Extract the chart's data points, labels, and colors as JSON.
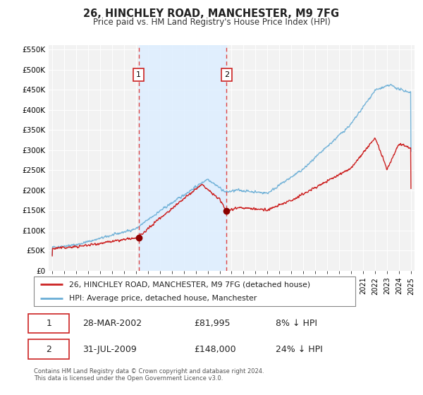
{
  "title": "26, HINCHLEY ROAD, MANCHESTER, M9 7FG",
  "subtitle": "Price paid vs. HM Land Registry's House Price Index (HPI)",
  "ylim": [
    0,
    560000
  ],
  "yticks": [
    0,
    50000,
    100000,
    150000,
    200000,
    250000,
    300000,
    350000,
    400000,
    450000,
    500000,
    550000
  ],
  "ytick_labels": [
    "£0",
    "£50K",
    "£100K",
    "£150K",
    "£200K",
    "£250K",
    "£300K",
    "£350K",
    "£400K",
    "£450K",
    "£500K",
    "£550K"
  ],
  "xlim_start": 1994.7,
  "xlim_end": 2025.3,
  "background_color": "#ffffff",
  "plot_bg_color": "#f2f2f2",
  "grid_color": "#ffffff",
  "sale1_x": 2002.23,
  "sale1_y": 81995,
  "sale1_label": "1",
  "sale1_date": "28-MAR-2002",
  "sale1_price": "£81,995",
  "sale1_hpi": "8% ↓ HPI",
  "sale2_x": 2009.58,
  "sale2_y": 148000,
  "sale2_label": "2",
  "sale2_date": "31-JUL-2009",
  "sale2_price": "£148,000",
  "sale2_hpi": "24% ↓ HPI",
  "vline_color": "#d44",
  "dot_color": "#8b0000",
  "red_line_color": "#cc2222",
  "blue_line_color": "#6aaed6",
  "shade_color": "#ddeeff",
  "legend_label_red": "26, HINCHLEY ROAD, MANCHESTER, M9 7FG (detached house)",
  "legend_label_blue": "HPI: Average price, detached house, Manchester",
  "footer": "Contains HM Land Registry data © Crown copyright and database right 2024.\nThis data is licensed under the Open Government Licence v3.0."
}
